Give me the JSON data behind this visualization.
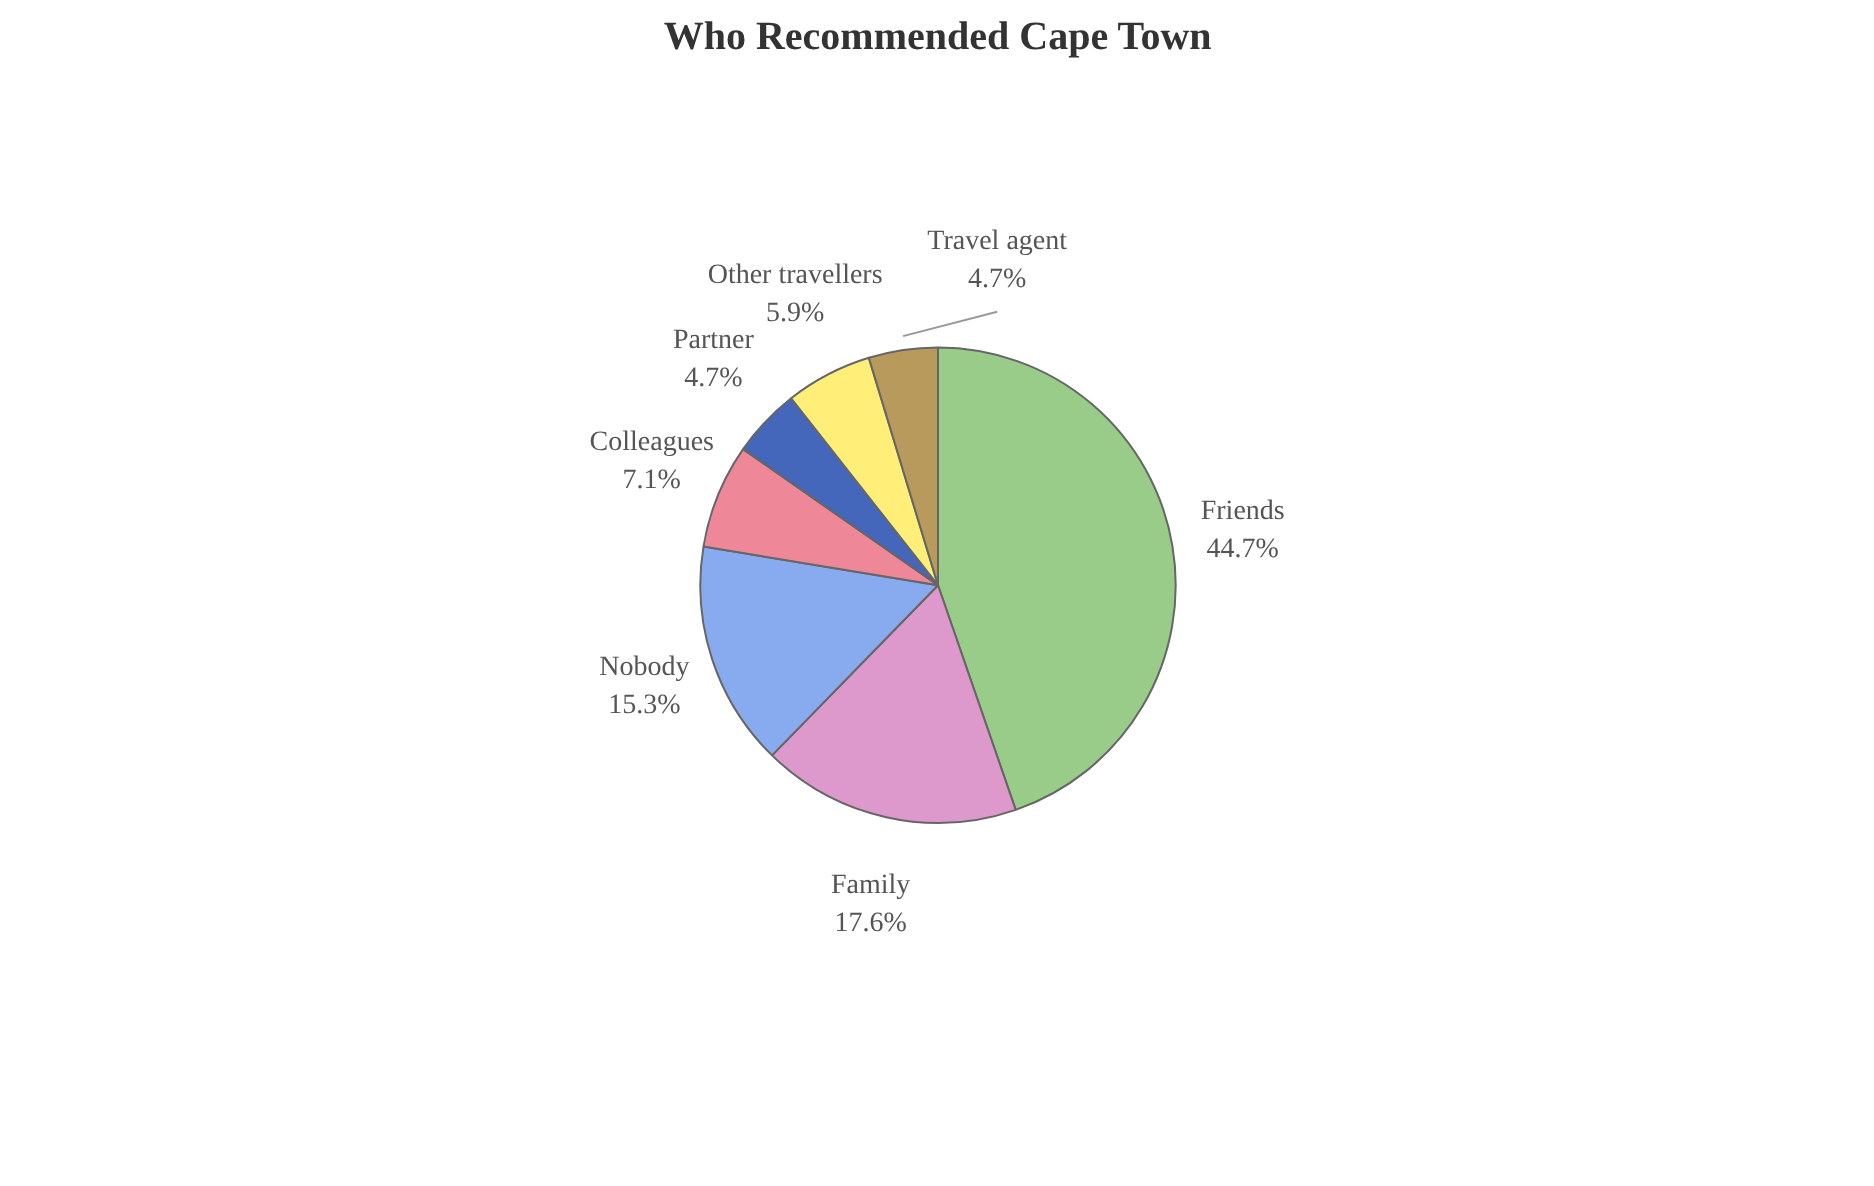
{
  "chart_data": {
    "type": "pie",
    "title": "Who Recommended Cape Town",
    "categories": [
      "Friends",
      "Family",
      "Nobody",
      "Colleagues",
      "Partner",
      "Other travellers",
      "Travel agent"
    ],
    "values": [
      44.7,
      17.6,
      15.3,
      7.1,
      4.7,
      5.9,
      4.7
    ],
    "value_labels": [
      "44.7%",
      "17.6%",
      "15.3%",
      "7.1%",
      "4.7%",
      "5.9%",
      "4.7%"
    ],
    "colors": [
      "#99cc88",
      "#dd99cc",
      "#88aaee",
      "#ee8899",
      "#4466bb",
      "#ffee77",
      "#b89a5c"
    ],
    "legend": false
  }
}
